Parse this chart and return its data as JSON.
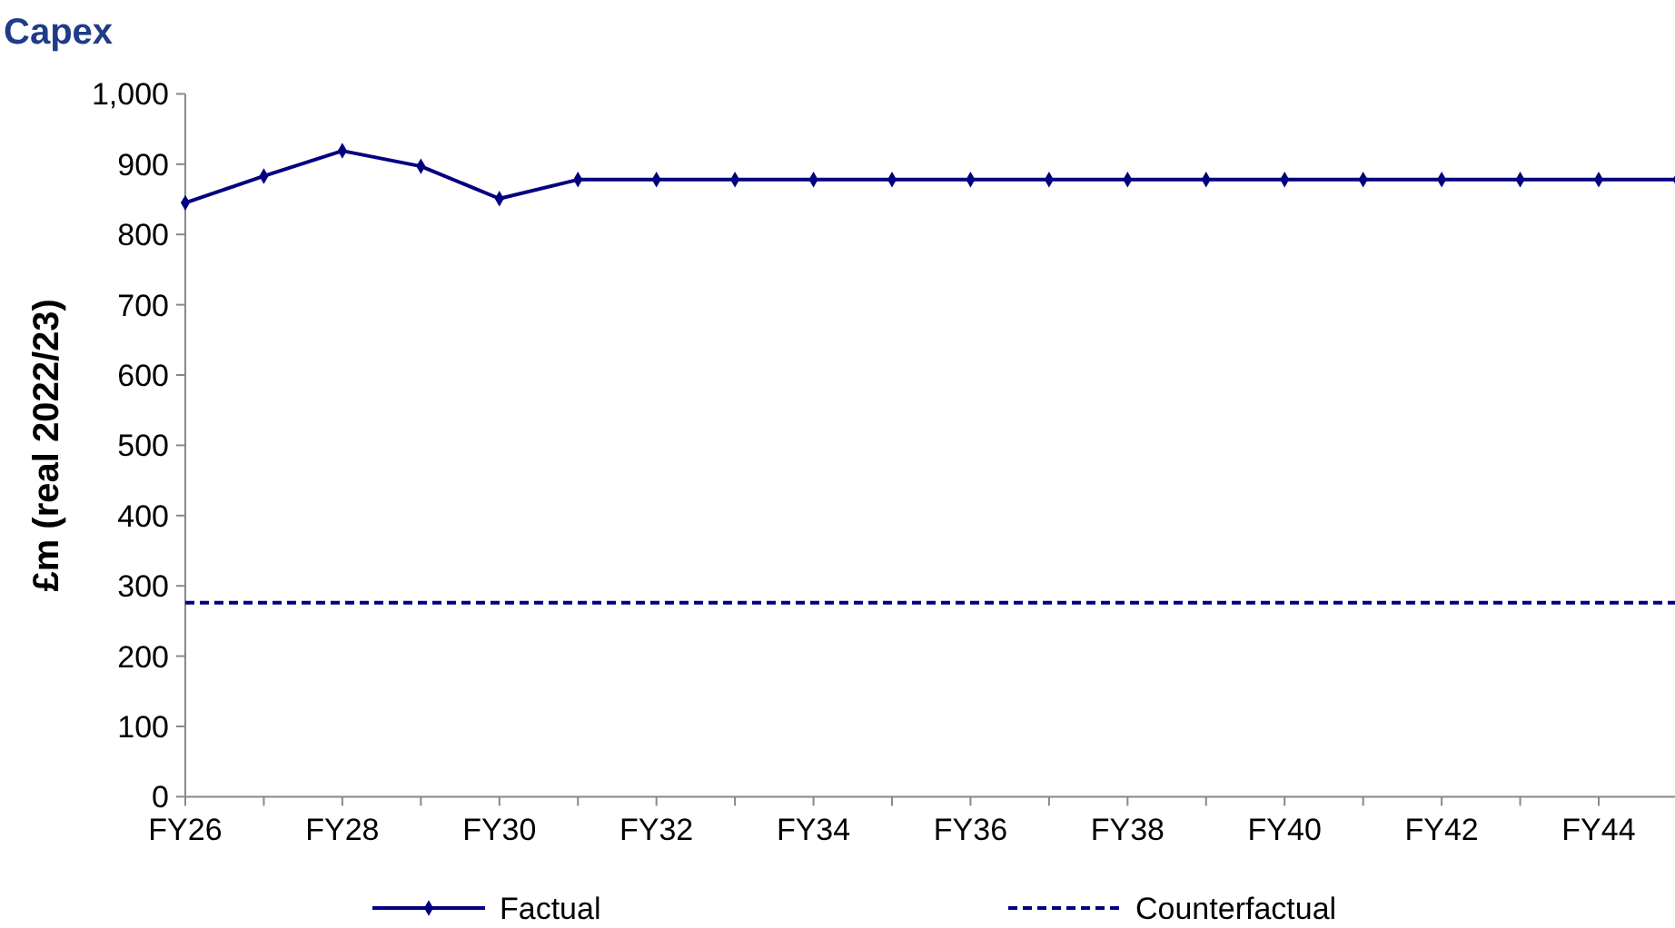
{
  "chart_data": {
    "type": "line",
    "title": "Capex",
    "ylabel": "£m (real 2022/23)",
    "categories": [
      "FY26",
      null,
      "FY28",
      null,
      "FY30",
      null,
      "FY32",
      null,
      "FY34",
      null,
      "FY36",
      null,
      "FY38",
      null,
      "FY40",
      null,
      "FY42",
      null,
      "FY44",
      null
    ],
    "series": [
      {
        "name": "Factual",
        "color": "#000080",
        "marker": "diamond",
        "line_style": "solid",
        "values": [
          845,
          883,
          919,
          897,
          851,
          878,
          878,
          878,
          878,
          878,
          878,
          878,
          878,
          878,
          878,
          878,
          878,
          878,
          878,
          878
        ]
      },
      {
        "name": "Counterfactual",
        "color": "#000080",
        "marker": "none",
        "line_style": "dashed",
        "values": [
          276,
          276,
          276,
          276,
          276,
          276,
          276,
          276,
          276,
          276,
          276,
          276,
          276,
          276,
          276,
          276,
          276,
          276,
          276,
          276
        ]
      }
    ],
    "ylim": [
      0,
      1000
    ],
    "yticks": [
      0,
      100,
      200,
      300,
      400,
      500,
      600,
      700,
      800,
      900,
      {
        "value": 1000,
        "label": "1,000"
      }
    ],
    "grid": false,
    "legend": "bottom"
  }
}
